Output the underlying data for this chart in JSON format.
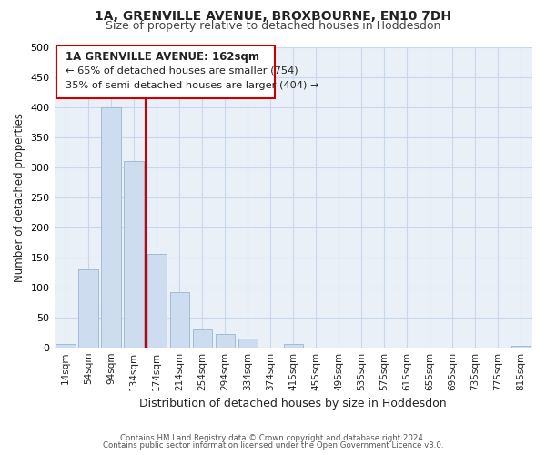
{
  "title": "1A, GRENVILLE AVENUE, BROXBOURNE, EN10 7DH",
  "subtitle": "Size of property relative to detached houses in Hoddesdon",
  "xlabel": "Distribution of detached houses by size in Hoddesdon",
  "ylabel": "Number of detached properties",
  "bar_labels": [
    "14sqm",
    "54sqm",
    "94sqm",
    "134sqm",
    "174sqm",
    "214sqm",
    "254sqm",
    "294sqm",
    "334sqm",
    "374sqm",
    "415sqm",
    "455sqm",
    "495sqm",
    "535sqm",
    "575sqm",
    "615sqm",
    "655sqm",
    "695sqm",
    "735sqm",
    "775sqm",
    "815sqm"
  ],
  "bar_values": [
    6,
    130,
    400,
    310,
    155,
    92,
    30,
    22,
    15,
    0,
    6,
    0,
    0,
    0,
    0,
    0,
    0,
    0,
    0,
    0,
    2
  ],
  "bar_color": "#cddcee",
  "bar_edge_color": "#9ab5d0",
  "vline_color": "#cc0000",
  "ylim": [
    0,
    500
  ],
  "yticks": [
    0,
    50,
    100,
    150,
    200,
    250,
    300,
    350,
    400,
    450,
    500
  ],
  "annotation_title": "1A GRENVILLE AVENUE: 162sqm",
  "annotation_line1": "← 65% of detached houses are smaller (754)",
  "annotation_line2": "35% of semi-detached houses are larger (404) →",
  "annotation_box_color": "#ffffff",
  "annotation_box_edge": "#cc0000",
  "footer1": "Contains HM Land Registry data © Crown copyright and database right 2024.",
  "footer2": "Contains public sector information licensed under the Open Government Licence v3.0.",
  "grid_color": "#c8d8ec",
  "background_color": "#eaf0f8"
}
